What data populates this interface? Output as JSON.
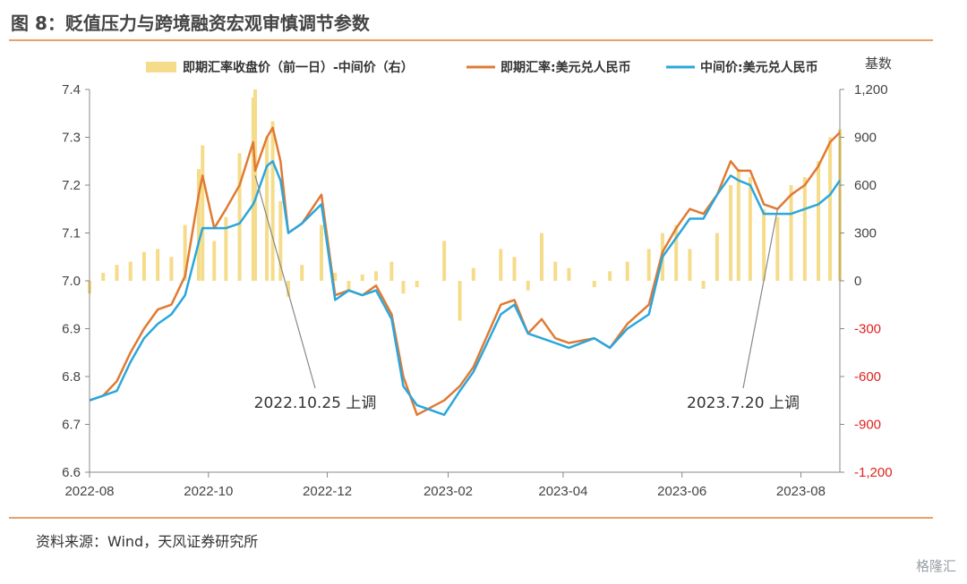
{
  "title": "图 8：贬值压力与跨境融资宏观审慎调节参数",
  "source": "资料来源：Wind，天风证券研究所",
  "watermark": "格隆汇",
  "colors": {
    "spot": "#e07a33",
    "mid": "#2aa7dc",
    "bar": "#f5dc8a",
    "rule": "#e8a06a",
    "neg": "#e0221c"
  },
  "chart_data": {
    "type": "line",
    "x_range": [
      "2022-08-01",
      "2023-08-21"
    ],
    "xticks": [
      "2022-08",
      "2022-10",
      "2022-12",
      "2023-02",
      "2023-04",
      "2023-06",
      "2023-08"
    ],
    "left_axis": {
      "ylim": [
        6.6,
        7.4
      ],
      "ticks": [
        "6.6",
        "6.7",
        "6.8",
        "6.9",
        "7.0",
        "7.1",
        "7.2",
        "7.3",
        "7.4"
      ]
    },
    "right_axis": {
      "label": "基数",
      "ylim": [
        -1200,
        1200
      ],
      "ticks": [
        "1,200",
        "900",
        "600",
        "300",
        "0",
        "-300",
        "-600",
        "-900",
        "-1,200"
      ]
    },
    "legend": [
      "即期汇率收盘价（前一日）-中间价（右）",
      "即期汇率:美元兑人民币",
      "中间价:美元兑人民币"
    ],
    "spot": [
      [
        "2022-08-01",
        6.75
      ],
      [
        "2022-08-08",
        6.76
      ],
      [
        "2022-08-15",
        6.79
      ],
      [
        "2022-08-22",
        6.85
      ],
      [
        "2022-08-29",
        6.9
      ],
      [
        "2022-09-05",
        6.94
      ],
      [
        "2022-09-12",
        6.95
      ],
      [
        "2022-09-19",
        7.01
      ],
      [
        "2022-09-26",
        7.18
      ],
      [
        "2022-09-28",
        7.22
      ],
      [
        "2022-10-04",
        7.11
      ],
      [
        "2022-10-10",
        7.15
      ],
      [
        "2022-10-17",
        7.2
      ],
      [
        "2022-10-24",
        7.29
      ],
      [
        "2022-10-25",
        7.23
      ],
      [
        "2022-10-31",
        7.3
      ],
      [
        "2022-11-03",
        7.32
      ],
      [
        "2022-11-07",
        7.25
      ],
      [
        "2022-11-11",
        7.1
      ],
      [
        "2022-11-18",
        7.12
      ],
      [
        "2022-11-28",
        7.18
      ],
      [
        "2022-12-05",
        6.97
      ],
      [
        "2022-12-12",
        6.98
      ],
      [
        "2022-12-19",
        6.97
      ],
      [
        "2022-12-26",
        6.99
      ],
      [
        "2023-01-03",
        6.93
      ],
      [
        "2023-01-09",
        6.8
      ],
      [
        "2023-01-16",
        6.72
      ],
      [
        "2023-01-30",
        6.75
      ],
      [
        "2023-02-07",
        6.78
      ],
      [
        "2023-02-14",
        6.82
      ],
      [
        "2023-02-28",
        6.95
      ],
      [
        "2023-03-07",
        6.96
      ],
      [
        "2023-03-14",
        6.89
      ],
      [
        "2023-03-21",
        6.92
      ],
      [
        "2023-03-28",
        6.88
      ],
      [
        "2023-04-04",
        6.87
      ],
      [
        "2023-04-17",
        6.88
      ],
      [
        "2023-04-25",
        6.86
      ],
      [
        "2023-05-04",
        6.91
      ],
      [
        "2023-05-15",
        6.95
      ],
      [
        "2023-05-22",
        7.06
      ],
      [
        "2023-05-29",
        7.11
      ],
      [
        "2023-06-05",
        7.15
      ],
      [
        "2023-06-12",
        7.14
      ],
      [
        "2023-06-19",
        7.18
      ],
      [
        "2023-06-26",
        7.25
      ],
      [
        "2023-06-30",
        7.23
      ],
      [
        "2023-07-06",
        7.23
      ],
      [
        "2023-07-13",
        7.16
      ],
      [
        "2023-07-20",
        7.15
      ],
      [
        "2023-07-27",
        7.18
      ],
      [
        "2023-08-03",
        7.2
      ],
      [
        "2023-08-10",
        7.24
      ],
      [
        "2023-08-16",
        7.29
      ],
      [
        "2023-08-21",
        7.31
      ]
    ],
    "mid": [
      [
        "2022-08-01",
        6.75
      ],
      [
        "2022-08-08",
        6.76
      ],
      [
        "2022-08-15",
        6.77
      ],
      [
        "2022-08-22",
        6.83
      ],
      [
        "2022-08-29",
        6.88
      ],
      [
        "2022-09-05",
        6.91
      ],
      [
        "2022-09-12",
        6.93
      ],
      [
        "2022-09-19",
        6.97
      ],
      [
        "2022-09-26",
        7.08
      ],
      [
        "2022-09-28",
        7.11
      ],
      [
        "2022-10-04",
        7.11
      ],
      [
        "2022-10-10",
        7.11
      ],
      [
        "2022-10-17",
        7.12
      ],
      [
        "2022-10-24",
        7.16
      ],
      [
        "2022-10-25",
        7.17
      ],
      [
        "2022-10-31",
        7.24
      ],
      [
        "2022-11-03",
        7.25
      ],
      [
        "2022-11-07",
        7.21
      ],
      [
        "2022-11-11",
        7.1
      ],
      [
        "2022-11-18",
        7.12
      ],
      [
        "2022-11-28",
        7.16
      ],
      [
        "2022-12-05",
        6.96
      ],
      [
        "2022-12-12",
        6.98
      ],
      [
        "2022-12-19",
        6.97
      ],
      [
        "2022-12-26",
        6.98
      ],
      [
        "2023-01-03",
        6.92
      ],
      [
        "2023-01-09",
        6.78
      ],
      [
        "2023-01-16",
        6.74
      ],
      [
        "2023-01-30",
        6.72
      ],
      [
        "2023-02-07",
        6.77
      ],
      [
        "2023-02-14",
        6.81
      ],
      [
        "2023-02-28",
        6.93
      ],
      [
        "2023-03-07",
        6.95
      ],
      [
        "2023-03-14",
        6.89
      ],
      [
        "2023-03-21",
        6.88
      ],
      [
        "2023-03-28",
        6.87
      ],
      [
        "2023-04-04",
        6.86
      ],
      [
        "2023-04-17",
        6.88
      ],
      [
        "2023-04-25",
        6.86
      ],
      [
        "2023-05-04",
        6.9
      ],
      [
        "2023-05-15",
        6.93
      ],
      [
        "2023-05-22",
        7.05
      ],
      [
        "2023-05-29",
        7.09
      ],
      [
        "2023-06-05",
        7.13
      ],
      [
        "2023-06-12",
        7.13
      ],
      [
        "2023-06-19",
        7.18
      ],
      [
        "2023-06-26",
        7.22
      ],
      [
        "2023-06-30",
        7.21
      ],
      [
        "2023-07-06",
        7.2
      ],
      [
        "2023-07-13",
        7.14
      ],
      [
        "2023-07-20",
        7.14
      ],
      [
        "2023-07-27",
        7.14
      ],
      [
        "2023-08-03",
        7.15
      ],
      [
        "2023-08-10",
        7.16
      ],
      [
        "2023-08-16",
        7.18
      ],
      [
        "2023-08-21",
        7.21
      ]
    ],
    "diff": [
      [
        "2022-08-01",
        -80
      ],
      [
        "2022-08-08",
        50
      ],
      [
        "2022-08-15",
        100
      ],
      [
        "2022-08-22",
        120
      ],
      [
        "2022-08-29",
        180
      ],
      [
        "2022-09-05",
        200
      ],
      [
        "2022-09-12",
        150
      ],
      [
        "2022-09-19",
        350
      ],
      [
        "2022-09-26",
        700
      ],
      [
        "2022-09-28",
        850
      ],
      [
        "2022-10-04",
        250
      ],
      [
        "2022-10-10",
        400
      ],
      [
        "2022-10-17",
        800
      ],
      [
        "2022-10-24",
        1150
      ],
      [
        "2022-10-25",
        1200
      ],
      [
        "2022-10-31",
        900
      ],
      [
        "2022-11-03",
        1000
      ],
      [
        "2022-11-07",
        500
      ],
      [
        "2022-11-11",
        -100
      ],
      [
        "2022-11-18",
        100
      ],
      [
        "2022-11-28",
        350
      ],
      [
        "2022-12-05",
        50
      ],
      [
        "2022-12-12",
        -60
      ],
      [
        "2022-12-19",
        40
      ],
      [
        "2022-12-26",
        60
      ],
      [
        "2023-01-03",
        120
      ],
      [
        "2023-01-09",
        -80
      ],
      [
        "2023-01-16",
        -40
      ],
      [
        "2023-01-30",
        250
      ],
      [
        "2023-02-07",
        -250
      ],
      [
        "2023-02-14",
        80
      ],
      [
        "2023-02-28",
        200
      ],
      [
        "2023-03-07",
        150
      ],
      [
        "2023-03-14",
        -60
      ],
      [
        "2023-03-21",
        300
      ],
      [
        "2023-03-28",
        120
      ],
      [
        "2023-04-04",
        80
      ],
      [
        "2023-04-17",
        -40
      ],
      [
        "2023-04-25",
        60
      ],
      [
        "2023-05-04",
        120
      ],
      [
        "2023-05-15",
        200
      ],
      [
        "2023-05-22",
        300
      ],
      [
        "2023-05-29",
        350
      ],
      [
        "2023-06-05",
        200
      ],
      [
        "2023-06-12",
        -50
      ],
      [
        "2023-06-19",
        300
      ],
      [
        "2023-06-26",
        600
      ],
      [
        "2023-06-30",
        700
      ],
      [
        "2023-07-06",
        650
      ],
      [
        "2023-07-13",
        450
      ],
      [
        "2023-07-20",
        400
      ],
      [
        "2023-07-27",
        600
      ],
      [
        "2023-08-03",
        650
      ],
      [
        "2023-08-10",
        750
      ],
      [
        "2023-08-16",
        900
      ],
      [
        "2023-08-21",
        950
      ]
    ],
    "annotations": [
      {
        "text": "2022.10.25 上调",
        "date": "2022-10-25",
        "value": 7.22
      },
      {
        "text": "2023.7.20 上调",
        "date": "2023-07-20",
        "value": 7.15
      }
    ]
  }
}
